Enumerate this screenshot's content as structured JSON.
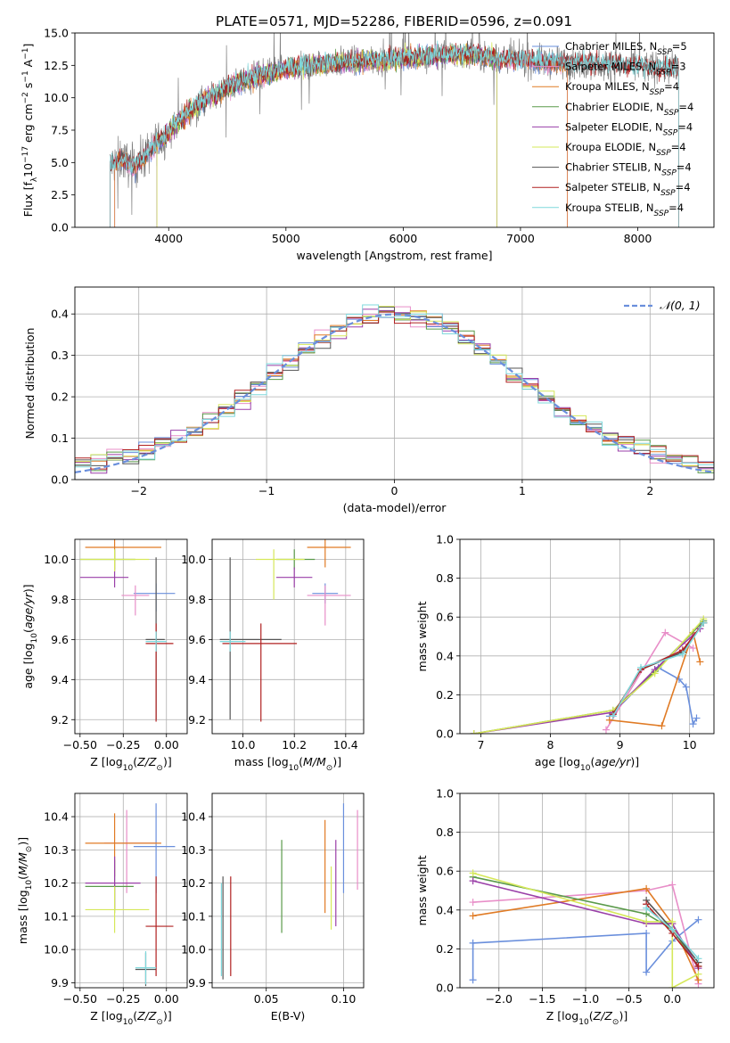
{
  "figure": {
    "title": "PLATE=0571, MJD=52286, FIBERID=0596, z=0.091"
  },
  "colors": {
    "Chabrier MILES": "#6a8fdc",
    "Salpeter MILES": "#e88ec8",
    "Kroupa MILES": "#e07b25",
    "Chabrier ELODIE": "#5a9a4a",
    "Salpeter ELODIE": "#9a3fa8",
    "Kroupa ELODIE": "#d6e85a",
    "Chabrier STELIB": "#555555",
    "Salpeter STELIB": "#b02020",
    "Kroupa STELIB": "#7fd8dc",
    "gauss": "#6a8fdc"
  },
  "chart_data": [
    {
      "type": "line",
      "id": "spectrum",
      "xlabel": "wavelength [Angstrom, rest frame]",
      "ylabel": "Flux [f_λ 10^-17 erg cm^-2 s^-1 A^-1]",
      "xlim": [
        3200,
        8650
      ],
      "ylim": [
        0,
        15
      ],
      "xticks": [
        4000,
        5000,
        6000,
        7000,
        8000
      ],
      "yticks": [
        0.0,
        2.5,
        5.0,
        7.5,
        10.0,
        12.5,
        15.0
      ],
      "legend_position": "upper right",
      "legend": [
        {
          "name": "Chabrier MILES, N_SSP=5"
        },
        {
          "name": "Salpeter MILES, N_SSP=3"
        },
        {
          "name": "Kroupa MILES, N_SSP=4"
        },
        {
          "name": "Chabrier ELODIE, N_SSP=4"
        },
        {
          "name": "Salpeter ELODIE, N_SSP=4"
        },
        {
          "name": "Kroupa ELODIE, N_SSP=4"
        },
        {
          "name": "Chabrier STELIB, N_SSP=4"
        },
        {
          "name": "Salpeter STELIB, N_SSP=4"
        },
        {
          "name": "Kroupa STELIB, N_SSP=4"
        }
      ],
      "continuum": {
        "x": [
          3500,
          3600,
          3700,
          3800,
          3900,
          4000,
          4100,
          4200,
          4300,
          4400,
          4500,
          4600,
          4800,
          5000,
          5200,
          5400,
          5600,
          5800,
          6000,
          6200,
          6400,
          6600,
          6800,
          7000,
          7200,
          7400,
          7600,
          7800,
          8000,
          8200,
          8400
        ],
        "y": [
          4.8,
          5.3,
          4.6,
          5.5,
          6.5,
          7.3,
          8.3,
          9.1,
          9.7,
          10.3,
          10.8,
          11.2,
          11.8,
          12.2,
          12.5,
          12.7,
          12.8,
          12.9,
          13.1,
          13.2,
          13.3,
          13.4,
          13.0,
          12.9,
          12.8,
          12.7,
          12.6,
          12.5,
          12.4,
          12.3,
          12.2
        ]
      },
      "model_coverage": [
        {
          "series": "Chabrier MILES",
          "x": [
            3540,
            7400
          ]
        },
        {
          "series": "Salpeter MILES",
          "x": [
            3540,
            7400
          ]
        },
        {
          "series": "Kroupa MILES",
          "x": [
            3540,
            7400
          ]
        },
        {
          "series": "Chabrier ELODIE",
          "x": [
            3900,
            6800
          ]
        },
        {
          "series": "Salpeter ELODIE",
          "x": [
            3900,
            6800
          ]
        },
        {
          "series": "Kroupa ELODIE",
          "x": [
            3900,
            6800
          ]
        },
        {
          "series": "Chabrier STELIB",
          "x": [
            3500,
            8350
          ]
        },
        {
          "series": "Salpeter STELIB",
          "x": [
            3500,
            8350
          ]
        },
        {
          "series": "Kroupa STELIB",
          "x": [
            3500,
            8350
          ]
        }
      ]
    },
    {
      "type": "line",
      "id": "residuals",
      "xlabel": "(data-model)/error",
      "ylabel": "Normed distribution",
      "xlim": [
        -2.5,
        2.5
      ],
      "ylim": [
        0,
        0.465
      ],
      "xticks": [
        -2,
        -1,
        0,
        1,
        2
      ],
      "yticks": [
        0.0,
        0.1,
        0.2,
        0.3,
        0.4
      ],
      "grid": true,
      "legend_position": "upper right",
      "legend": [
        {
          "name": "N(0,1)"
        }
      ],
      "hist_series": [
        "Chabrier MILES",
        "Salpeter MILES",
        "Kroupa MILES",
        "Chabrier ELODIE",
        "Salpeter ELODIE",
        "Kroupa ELODIE",
        "Chabrier STELIB",
        "Salpeter STELIB",
        "Kroupa STELIB"
      ]
    },
    {
      "type": "scatter",
      "id": "age-vs-Z",
      "xlabel": "Z [log10(Z/Z⊙)]",
      "ylabel": "age [log10(age/yr)]",
      "xlim": [
        -0.53,
        0.12
      ],
      "ylim": [
        9.13,
        10.1
      ],
      "xticks": [
        -0.5,
        -0.25,
        0.0
      ],
      "yticks": [
        9.2,
        9.4,
        9.6,
        9.8,
        10.0
      ],
      "grid": true,
      "points": [
        {
          "series": "Chabrier MILES",
          "x": -0.06,
          "y": 9.83,
          "xerr": [
            0.13,
            0.11
          ],
          "yerr": [
            0.09,
            0.05
          ]
        },
        {
          "series": "Salpeter MILES",
          "x": -0.18,
          "y": 9.82,
          "xerr": [
            0.08,
            0.08
          ],
          "yerr": [
            0.1,
            0.05
          ]
        },
        {
          "series": "Kroupa MILES",
          "x": -0.3,
          "y": 10.06,
          "xerr": [
            0.17,
            0.27
          ],
          "yerr": [
            0.1,
            0.05
          ]
        },
        {
          "series": "Chabrier ELODIE",
          "x": -0.3,
          "y": 10.0,
          "xerr": [
            0.2,
            0.12
          ],
          "yerr": [
            0.05,
            0.05
          ]
        },
        {
          "series": "Salpeter ELODIE",
          "x": -0.3,
          "y": 9.91,
          "xerr": [
            0.2,
            0.08
          ],
          "yerr": [
            0.05,
            0.05
          ]
        },
        {
          "series": "Kroupa ELODIE",
          "x": -0.3,
          "y": 10.0,
          "xerr": [
            0.2,
            0.2
          ],
          "yerr": [
            0.06,
            0.05
          ]
        },
        {
          "series": "Chabrier STELIB",
          "x": -0.06,
          "y": 9.6,
          "xerr": [
            0.06,
            0.05
          ],
          "yerr": [
            0.4,
            0.41
          ]
        },
        {
          "series": "Salpeter STELIB",
          "x": -0.06,
          "y": 9.58,
          "xerr": [
            0.06,
            0.1
          ],
          "yerr": [
            0.39,
            0.1
          ]
        },
        {
          "series": "Kroupa STELIB",
          "x": -0.06,
          "y": 9.59,
          "xerr": [
            0.06,
            0.06
          ],
          "yerr": [
            0.05,
            0.05
          ]
        }
      ]
    },
    {
      "type": "scatter",
      "id": "age-vs-mass",
      "xlabel": "mass [log10(M/M⊙)]",
      "ylabel": "",
      "xlim": [
        9.88,
        10.47
      ],
      "ylim": [
        9.13,
        10.1
      ],
      "xticks": [
        10.0,
        10.2,
        10.4
      ],
      "yticks": [
        9.2,
        9.4,
        9.6,
        9.8,
        10.0
      ],
      "grid": true,
      "points": [
        {
          "series": "Chabrier MILES",
          "x": 10.32,
          "y": 9.83,
          "xerr": [
            0.05,
            0.05
          ],
          "yerr": [
            0.05,
            0.05
          ]
        },
        {
          "series": "Salpeter MILES",
          "x": 10.32,
          "y": 9.82,
          "xerr": [
            0.07,
            0.1
          ],
          "yerr": [
            0.15,
            0.05
          ]
        },
        {
          "series": "Kroupa MILES",
          "x": 10.32,
          "y": 10.06,
          "xerr": [
            0.07,
            0.1
          ],
          "yerr": [
            0.1,
            0.05
          ]
        },
        {
          "series": "Chabrier ELODIE",
          "x": 10.2,
          "y": 10.0,
          "xerr": [
            0.07,
            0.08
          ],
          "yerr": [
            0.05,
            0.05
          ]
        },
        {
          "series": "Salpeter ELODIE",
          "x": 10.2,
          "y": 9.91,
          "xerr": [
            0.07,
            0.07
          ],
          "yerr": [
            0.05,
            0.05
          ]
        },
        {
          "series": "Kroupa ELODIE",
          "x": 10.12,
          "y": 10.0,
          "xerr": [
            0.07,
            0.12
          ],
          "yerr": [
            0.2,
            0.05
          ]
        },
        {
          "series": "Chabrier STELIB",
          "x": 9.95,
          "y": 9.6,
          "xerr": [
            0.04,
            0.2
          ],
          "yerr": [
            0.4,
            0.41
          ]
        },
        {
          "series": "Salpeter STELIB",
          "x": 10.07,
          "y": 9.58,
          "xerr": [
            0.15,
            0.14
          ],
          "yerr": [
            0.39,
            0.1
          ]
        },
        {
          "series": "Kroupa STELIB",
          "x": 9.95,
          "y": 9.59,
          "xerr": [
            0.04,
            0.06
          ],
          "yerr": [
            0.05,
            0.05
          ]
        }
      ]
    },
    {
      "type": "line",
      "id": "massweight-vs-age",
      "xlabel": "age [log10(age/yr)]",
      "ylabel": "mass weight",
      "xlim": [
        6.7,
        10.35
      ],
      "ylim": [
        0,
        1.0
      ],
      "xticks": [
        7,
        8,
        9,
        10
      ],
      "yticks": [
        0.0,
        0.2,
        0.4,
        0.6,
        0.8,
        1.0
      ],
      "grid": true,
      "series": [
        {
          "name": "Chabrier MILES",
          "x": [
            8.85,
            9.55,
            9.85,
            9.95,
            10.05,
            10.1
          ],
          "y": [
            0.09,
            0.34,
            0.28,
            0.24,
            0.05,
            0.08
          ]
        },
        {
          "name": "Salpeter MILES",
          "x": [
            8.8,
            9.65,
            10.05
          ],
          "y": [
            0.02,
            0.52,
            0.44
          ]
        },
        {
          "name": "Kroupa MILES",
          "x": [
            8.85,
            9.6,
            10.05,
            10.15
          ],
          "y": [
            0.07,
            0.04,
            0.52,
            0.37
          ]
        },
        {
          "name": "Chabrier ELODIE",
          "x": [
            6.9,
            8.9,
            9.5,
            10.2
          ],
          "y": [
            0.0,
            0.12,
            0.32,
            0.58
          ]
        },
        {
          "name": "Salpeter ELODIE",
          "x": [
            6.9,
            8.9,
            9.5,
            10.15
          ],
          "y": [
            0.0,
            0.11,
            0.33,
            0.54
          ]
        },
        {
          "name": "Kroupa ELODIE",
          "x": [
            6.9,
            8.9,
            9.5,
            10.2
          ],
          "y": [
            0.0,
            0.12,
            0.31,
            0.59
          ]
        },
        {
          "name": "Chabrier STELIB",
          "x": [
            8.9,
            9.3,
            9.9,
            10.2
          ],
          "y": [
            0.1,
            0.33,
            0.42,
            0.57
          ]
        },
        {
          "name": "Salpeter STELIB",
          "x": [
            8.9,
            9.3,
            9.9,
            10.2
          ],
          "y": [
            0.1,
            0.33,
            0.43,
            0.57
          ]
        },
        {
          "name": "Kroupa STELIB",
          "x": [
            8.9,
            9.3,
            9.9,
            10.2
          ],
          "y": [
            0.09,
            0.34,
            0.41,
            0.57
          ]
        }
      ]
    },
    {
      "type": "scatter",
      "id": "mass-vs-Z",
      "xlabel": "Z [log10(Z/Z⊙)]",
      "ylabel": "mass [log10(M/M⊙)]",
      "xlim": [
        -0.53,
        0.12
      ],
      "ylim": [
        9.885,
        10.47
      ],
      "xticks": [
        -0.5,
        -0.25,
        0.0
      ],
      "yticks": [
        9.9,
        10.0,
        10.1,
        10.2,
        10.3,
        10.4
      ],
      "grid": true,
      "points": [
        {
          "series": "Chabrier MILES",
          "x": -0.06,
          "y": 10.31,
          "xerr": [
            0.13,
            0.11
          ],
          "yerr": [
            0.14,
            0.13
          ]
        },
        {
          "series": "Salpeter MILES",
          "x": -0.23,
          "y": 10.32,
          "xerr": [
            0.13,
            0.17
          ],
          "yerr": [
            0.15,
            0.1
          ]
        },
        {
          "series": "Kroupa MILES",
          "x": -0.3,
          "y": 10.32,
          "xerr": [
            0.17,
            0.27
          ],
          "yerr": [
            0.1,
            0.09
          ]
        },
        {
          "series": "Chabrier ELODIE",
          "x": -0.3,
          "y": 10.19,
          "xerr": [
            0.17,
            0.11
          ],
          "yerr": [
            0.08,
            0.08
          ]
        },
        {
          "series": "Salpeter ELODIE",
          "x": -0.3,
          "y": 10.2,
          "xerr": [
            0.17,
            0.15
          ],
          "yerr": [
            0.08,
            0.08
          ]
        },
        {
          "series": "Kroupa ELODIE",
          "x": -0.3,
          "y": 10.12,
          "xerr": [
            0.17,
            0.2
          ],
          "yerr": [
            0.07,
            0.07
          ]
        },
        {
          "series": "Chabrier STELIB",
          "x": -0.12,
          "y": 9.94,
          "xerr": [
            0.06,
            0.06
          ],
          "yerr": [
            0.05,
            0.05
          ]
        },
        {
          "series": "Salpeter STELIB",
          "x": -0.06,
          "y": 10.07,
          "xerr": [
            0.06,
            0.1
          ],
          "yerr": [
            0.15,
            0.15
          ]
        },
        {
          "series": "Kroupa STELIB",
          "x": -0.12,
          "y": 9.945,
          "xerr": [
            0.06,
            0.06
          ],
          "yerr": [
            0.05,
            0.05
          ]
        }
      ]
    },
    {
      "type": "scatter",
      "id": "mass-vs-EBV",
      "xlabel": "E(B-V)",
      "ylabel": "",
      "xlim": [
        0.015,
        0.113
      ],
      "ylim": [
        9.885,
        10.47
      ],
      "xticks": [
        0.05,
        0.1
      ],
      "yticks": [
        9.9,
        10.0,
        10.1,
        10.2,
        10.3,
        10.4
      ],
      "grid": true,
      "points": [
        {
          "series": "Chabrier MILES",
          "x": 0.1,
          "y": 10.31,
          "yerr": [
            0.14,
            0.13
          ]
        },
        {
          "series": "Salpeter MILES",
          "x": 0.109,
          "y": 10.3,
          "yerr": [
            0.12,
            0.12
          ]
        },
        {
          "series": "Kroupa MILES",
          "x": 0.088,
          "y": 10.25,
          "yerr": [
            0.14,
            0.14
          ]
        },
        {
          "series": "Chabrier ELODIE",
          "x": 0.06,
          "y": 10.19,
          "yerr": [
            0.14,
            0.14
          ]
        },
        {
          "series": "Salpeter ELODIE",
          "x": 0.095,
          "y": 10.2,
          "yerr": [
            0.13,
            0.13
          ]
        },
        {
          "series": "Kroupa ELODIE",
          "x": 0.092,
          "y": 10.12,
          "yerr": [
            0.06,
            0.13
          ]
        },
        {
          "series": "Chabrier STELIB",
          "x": 0.022,
          "y": 10.07,
          "yerr": [
            0.16,
            0.15
          ]
        },
        {
          "series": "Salpeter STELIB",
          "x": 0.027,
          "y": 10.07,
          "yerr": [
            0.15,
            0.15
          ]
        },
        {
          "series": "Kroupa STELIB",
          "x": 0.021,
          "y": 10.06,
          "yerr": [
            0.14,
            0.14
          ]
        }
      ]
    },
    {
      "type": "line",
      "id": "massweight-vs-Z",
      "xlabel": "Z [log10(Z/Z⊙)]",
      "ylabel": "mass weight",
      "xlim": [
        -2.45,
        0.48
      ],
      "ylim": [
        0,
        1.0
      ],
      "xticks": [
        -2.0,
        -1.5,
        -1.0,
        -0.5,
        0.0
      ],
      "yticks": [
        0.0,
        0.2,
        0.4,
        0.6,
        0.8,
        1.0
      ],
      "grid": true,
      "series": [
        {
          "name": "Chabrier MILES",
          "x": [
            -2.3,
            -2.3,
            -0.3,
            -0.3,
            0.0,
            0.3
          ],
          "y": [
            0.04,
            0.23,
            0.28,
            0.08,
            0.24,
            0.35
          ]
        },
        {
          "name": "Salpeter MILES",
          "x": [
            -2.3,
            -0.3,
            0.0,
            0.3
          ],
          "y": [
            0.44,
            0.5,
            0.53,
            0.02
          ]
        },
        {
          "name": "Kroupa MILES",
          "x": [
            -2.3,
            -0.3,
            0.0,
            0.3
          ],
          "y": [
            0.37,
            0.51,
            0.33,
            0.04
          ]
        },
        {
          "name": "Chabrier ELODIE",
          "x": [
            -2.3,
            -0.3,
            0.0,
            0.3
          ],
          "y": [
            0.57,
            0.38,
            0.3,
            0.11
          ]
        },
        {
          "name": "Salpeter ELODIE",
          "x": [
            -2.3,
            -0.3,
            0.0,
            0.3
          ],
          "y": [
            0.55,
            0.33,
            0.33,
            0.1
          ]
        },
        {
          "name": "Kroupa ELODIE",
          "x": [
            -2.3,
            -0.3,
            0.0,
            0.0,
            0.3
          ],
          "y": [
            0.59,
            0.34,
            0.34,
            0.0,
            0.07
          ]
        },
        {
          "name": "Chabrier STELIB",
          "x": [
            -0.3,
            0.0,
            0.3
          ],
          "y": [
            0.45,
            0.3,
            0.13
          ]
        },
        {
          "name": "Salpeter STELIB",
          "x": [
            -0.3,
            0.0,
            0.3
          ],
          "y": [
            0.43,
            0.28,
            0.11
          ]
        },
        {
          "name": "Kroupa STELIB",
          "x": [
            -0.3,
            0.0,
            0.3
          ],
          "y": [
            0.41,
            0.3,
            0.15
          ]
        }
      ]
    }
  ]
}
